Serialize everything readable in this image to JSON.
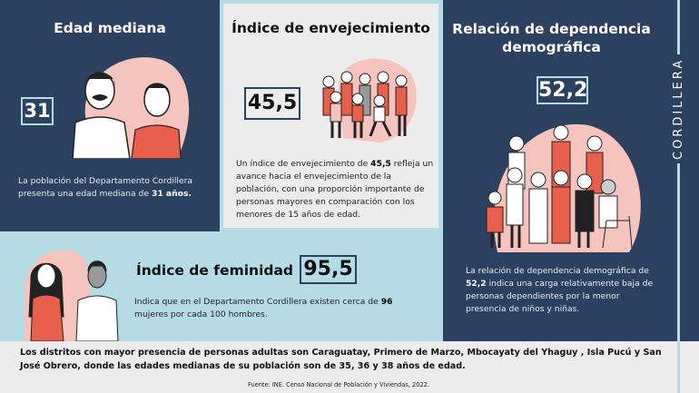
{
  "edad_mediana": {
    "title": "Edad mediana",
    "value": "31",
    "text_before": "La población del Departamento Cordillera presenta una edad mediana de ",
    "text_bold": "31 años."
  },
  "envejecimiento": {
    "title": "Índice de envejecimiento",
    "value": "45,5",
    "text_before": "Un índice de envejecimiento de ",
    "text_bold": "45,5",
    "text_after": " refleja un avance hacia el envejecimiento de la población, con una proporción importante de personas mayores en comparación con los menores de 15 años de edad."
  },
  "dependencia": {
    "title": "Relación de dependencia demográfica",
    "value": "52,2",
    "text_before": "La relación de dependencia demográfica de ",
    "text_bold": "52,2",
    "text_after": " indica una carga relativamente baja de personas dependientes por la menor presencia de niños y niñas."
  },
  "feminidad": {
    "title": "Índice de feminidad",
    "value": "95,5",
    "text_before": "Indica que en el Departamento Cordillera existen cerca de ",
    "text_bold": "96",
    "text_after": " mujeres por cada 100 hombres."
  },
  "sidebar": {
    "label": "CORDILLERA"
  },
  "footer": {
    "note": "Los distritos con mayor presencia de personas adultas son Caraguatay, Primero de Marzo, Mbocayaty del Yhaguy , Isla Pucú y San José Obrero, donde las edades medianas de su población son de 35, 36 y 38 años de edad.",
    "source": "Fuente: INE. Censo Nacional de Población y Viviendas, 2022."
  },
  "colors": {
    "navy": "#2c4060",
    "light_blue": "#b5dbe4",
    "gray": "#ececec",
    "accent": "#e8604c",
    "pink": "#f6c4be"
  }
}
